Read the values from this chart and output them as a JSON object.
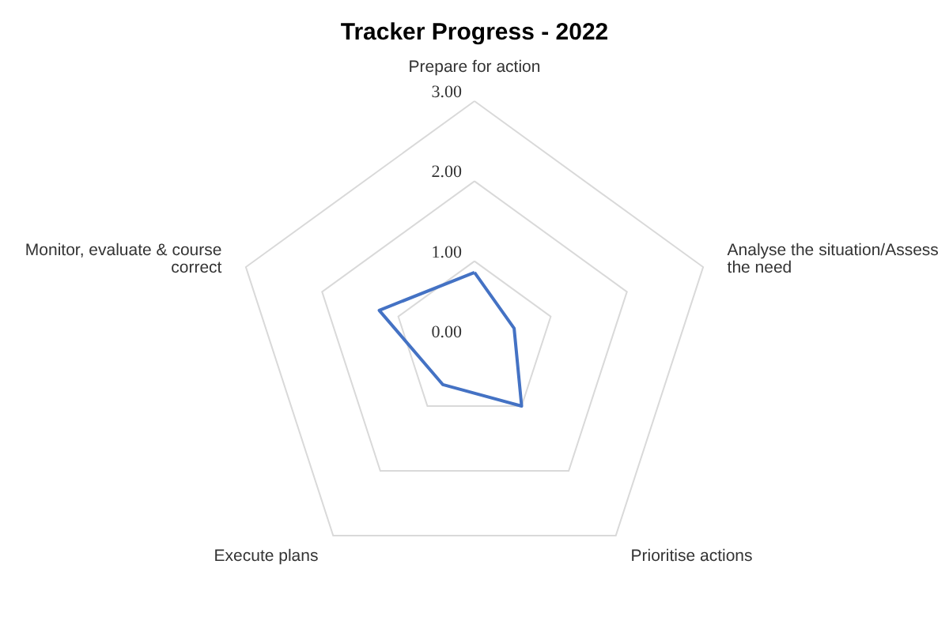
{
  "chart_data": {
    "type": "radar",
    "title": "Tracker Progress - 2022",
    "categories": [
      "Prepare for action",
      "Analyse the situation/Assess the need",
      "Prioritise actions",
      "Execute plans",
      "Monitor, evaluate & course correct"
    ],
    "series": [
      {
        "color": "#4472c4",
        "values": [
          0.86,
          0.52,
          1.0,
          0.67,
          1.25
        ]
      }
    ],
    "ylim": [
      0,
      3
    ],
    "yticks": [
      {
        "value": 0,
        "label": "0.00"
      },
      {
        "value": 1,
        "label": "1.00"
      },
      {
        "value": 2,
        "label": "2.00"
      },
      {
        "value": 3,
        "label": "3.00"
      }
    ],
    "grid": true,
    "marker": "none"
  }
}
